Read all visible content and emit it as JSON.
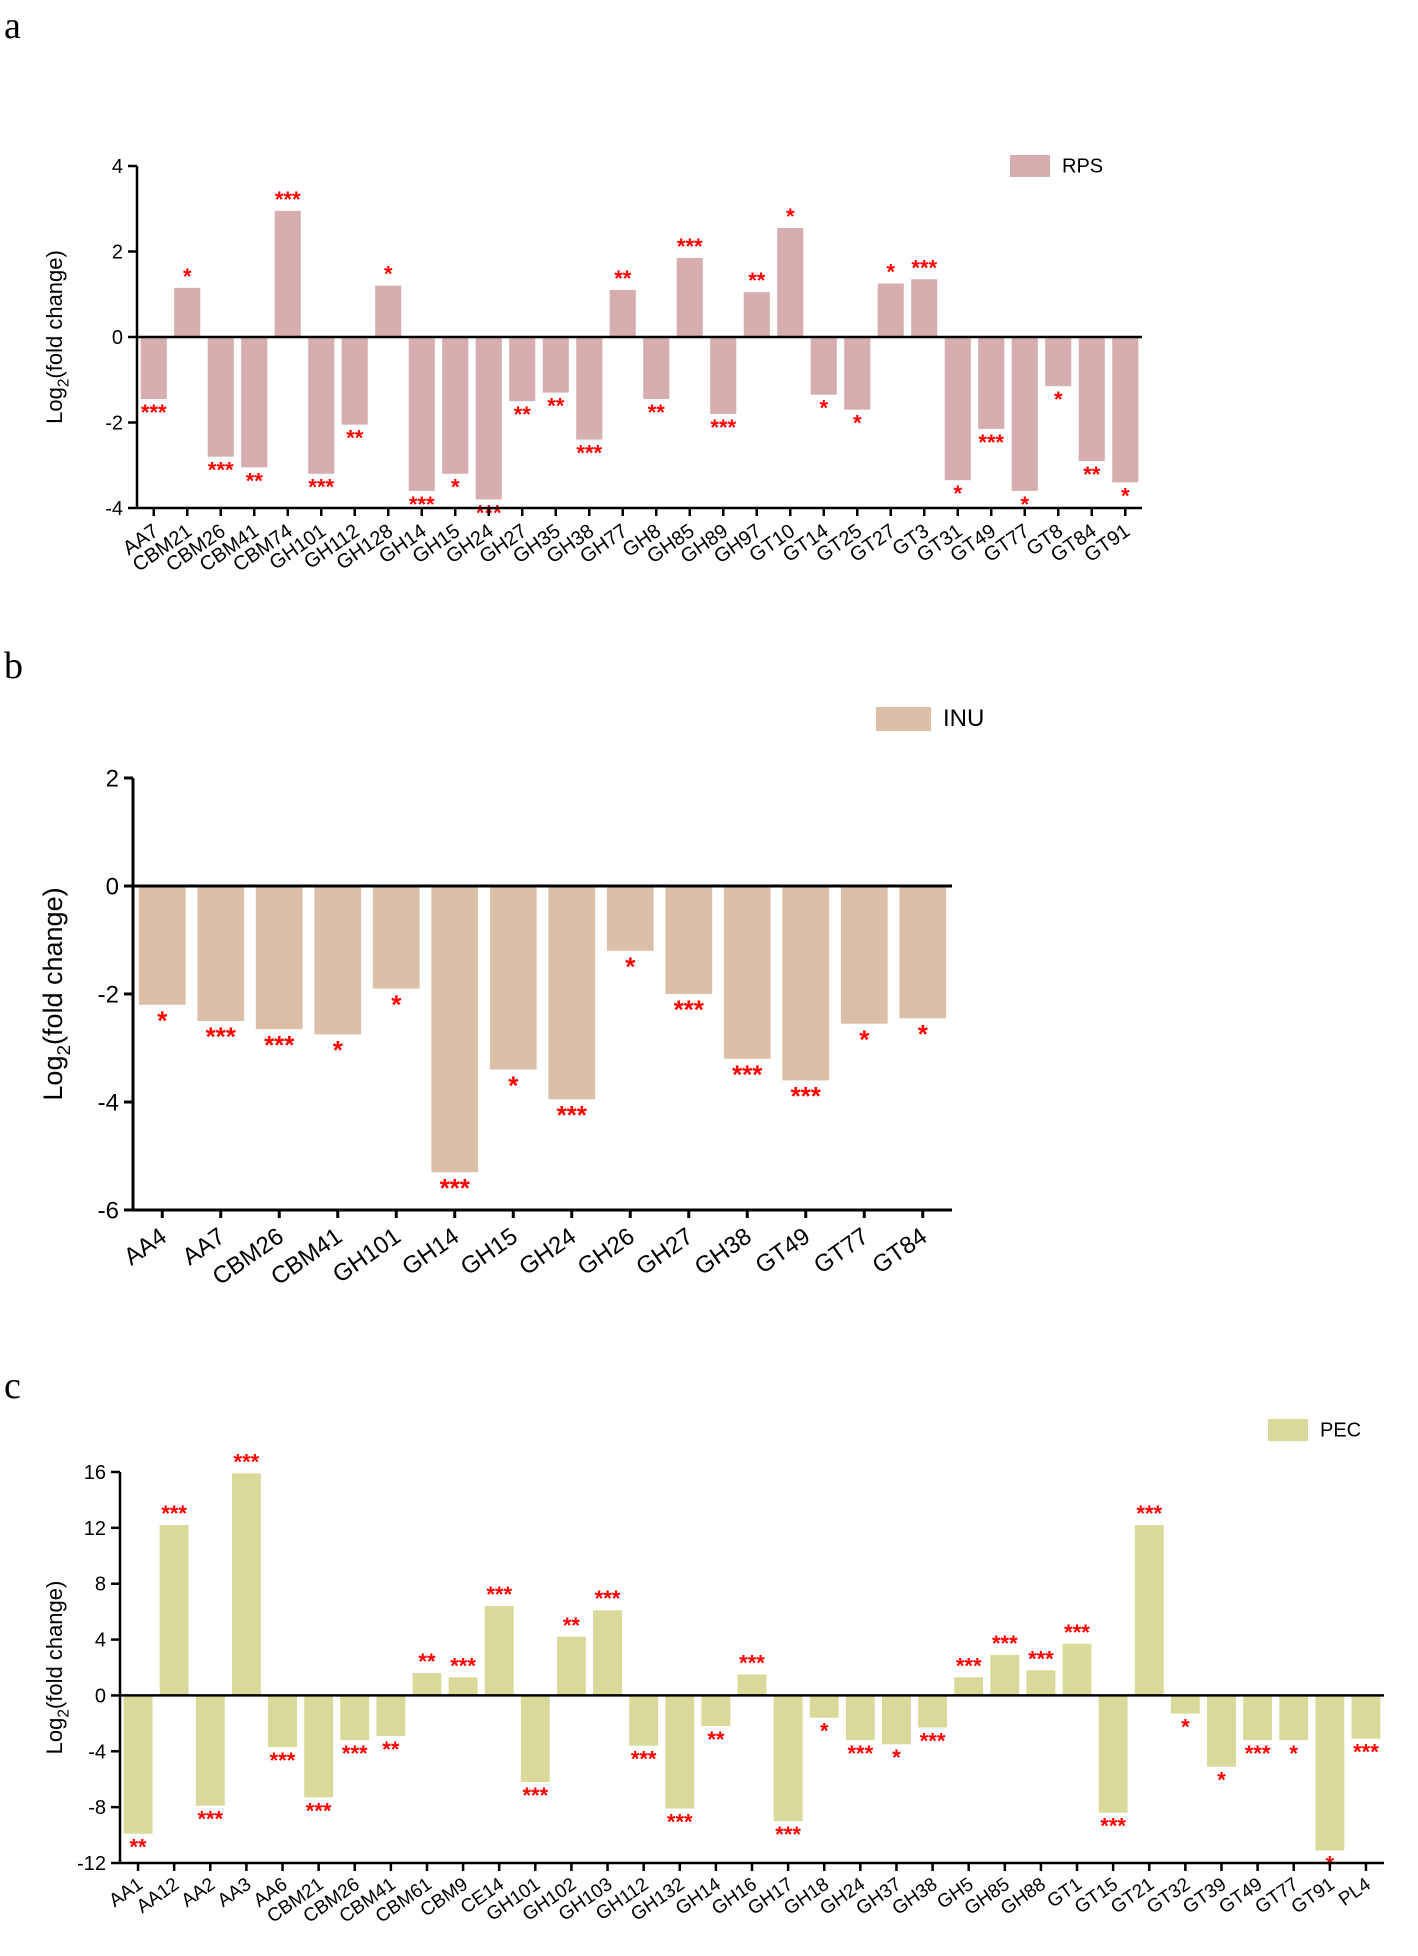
{
  "chart_data": [
    {
      "panel": "a",
      "type": "bar",
      "legend": "RPS",
      "color": "#d7aeb0",
      "ylabel": "Log2(fold change)",
      "ylim": [
        -4,
        4
      ],
      "yticks": [
        -4,
        -2,
        0,
        2,
        4
      ],
      "categories": [
        "AA7",
        "CBM21",
        "CBM26",
        "CBM41",
        "CBM74",
        "GH101",
        "GH112",
        "GH128",
        "GH14",
        "GH15",
        "GH24",
        "GH27",
        "GH35",
        "GH38",
        "GH77",
        "GH8",
        "GH85",
        "GH89",
        "GH97",
        "GT10",
        "GT14",
        "GT25",
        "GT27",
        "GT3",
        "GT31",
        "GT49",
        "GT77",
        "GT8",
        "GT84",
        "GT91"
      ],
      "values": [
        -1.45,
        1.15,
        -2.8,
        -3.05,
        2.95,
        -3.2,
        -2.05,
        1.2,
        -3.6,
        -3.2,
        -3.8,
        -1.5,
        -1.3,
        -2.4,
        1.1,
        -1.45,
        1.85,
        -1.8,
        1.05,
        2.55,
        -1.35,
        -1.7,
        1.25,
        1.35,
        -3.35,
        -2.15,
        -3.6,
        -1.15,
        -2.9,
        -3.4
      ],
      "significance": [
        "***",
        "*",
        "***",
        "**",
        "***",
        "***",
        "**",
        "*",
        "***",
        "*",
        "***",
        "**",
        "**",
        "***",
        "**",
        "**",
        "***",
        "***",
        "**",
        "*",
        "*",
        "*",
        "*",
        "***",
        "*",
        "***",
        "*",
        "*",
        "**",
        "*"
      ]
    },
    {
      "panel": "b",
      "type": "bar",
      "legend": "INU",
      "color": "#dcbfa8",
      "ylabel": "Log2(fold change)",
      "ylim": [
        -6,
        2
      ],
      "yticks": [
        -6,
        -4,
        -2,
        0,
        2
      ],
      "categories": [
        "AA4",
        "AA7",
        "CBM26",
        "CBM41",
        "GH101",
        "GH14",
        "GH15",
        "GH24",
        "GH26",
        "GH27",
        "GH38",
        "GT49",
        "GT77",
        "GT84"
      ],
      "values": [
        -2.2,
        -2.5,
        -2.65,
        -2.75,
        -1.9,
        -5.3,
        -3.4,
        -3.95,
        -1.2,
        -2.0,
        -3.2,
        -3.6,
        -2.55,
        -2.45
      ],
      "significance": [
        "*",
        "***",
        "***",
        "*",
        "*",
        "***",
        "*",
        "***",
        "*",
        "***",
        "***",
        "***",
        "*",
        "*"
      ]
    },
    {
      "panel": "c",
      "type": "bar",
      "legend": "PEC",
      "color": "#d9d99a",
      "ylabel": "Log2(fold change)",
      "ylim": [
        -12,
        16
      ],
      "yticks": [
        -12,
        -8,
        -4,
        0,
        4,
        8,
        12,
        16
      ],
      "categories": [
        "AA1",
        "AA12",
        "AA2",
        "AA3",
        "AA6",
        "CBM21",
        "CBM26",
        "CBM41",
        "CBM61",
        "CBM9",
        "CE14",
        "GH101",
        "GH102",
        "GH103",
        "GH112",
        "GH132",
        "GH14",
        "GH16",
        "GH17",
        "GH18",
        "GH24",
        "GH37",
        "GH38",
        "GH5",
        "GH85",
        "GH88",
        "GT1",
        "GT15",
        "GT21",
        "GT32",
        "GT39",
        "GT49",
        "GT77",
        "GT91",
        "PL4"
      ],
      "values": [
        -9.9,
        12.2,
        -7.9,
        15.9,
        -3.7,
        -7.3,
        -3.2,
        -2.9,
        1.6,
        1.3,
        6.4,
        -6.2,
        4.2,
        6.1,
        -3.6,
        -8.1,
        -2.2,
        1.5,
        -9.0,
        -1.6,
        -3.2,
        -3.5,
        -2.3,
        1.3,
        2.9,
        1.8,
        3.7,
        -8.4,
        12.2,
        -1.3,
        -5.1,
        -3.2,
        -3.2,
        -11.1,
        -3.1
      ],
      "significance": [
        "**",
        "***",
        "***",
        "***",
        "***",
        "***",
        "***",
        "**",
        "**",
        "***",
        "***",
        "***",
        "**",
        "***",
        "***",
        "***",
        "**",
        "***",
        "***",
        "*",
        "***",
        "*",
        "***",
        "***",
        "***",
        "***",
        "***",
        "***",
        "***",
        "*",
        "*",
        "***",
        "*",
        "*",
        "***"
      ]
    }
  ],
  "panels": [
    {
      "letter": "a",
      "ylabel_prefix": "Log",
      "ylabel_sub": "2",
      "ylabel_suffix": "(fold change)"
    },
    {
      "letter": "b",
      "ylabel_prefix": "Log",
      "ylabel_sub": "2",
      "ylabel_suffix": "(fold change)"
    },
    {
      "letter": "c",
      "ylabel_prefix": "Log",
      "ylabel_sub": "2",
      "ylabel_suffix": "(fold change)"
    }
  ]
}
